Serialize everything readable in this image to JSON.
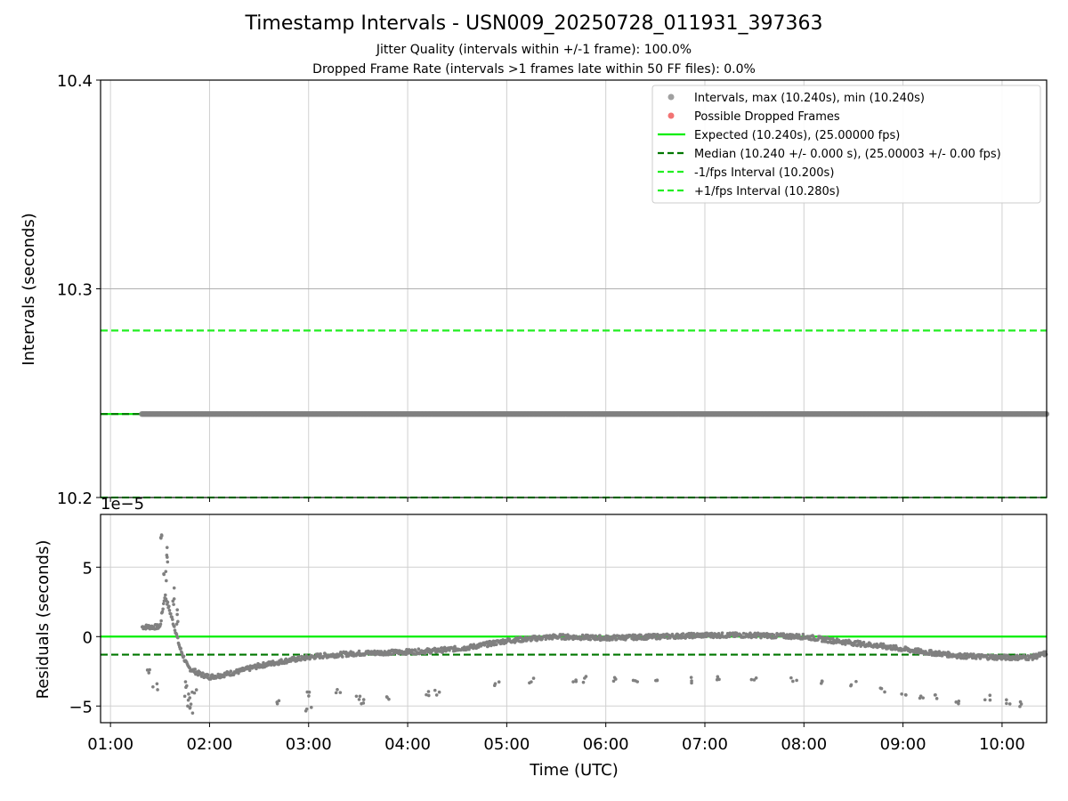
{
  "chart_data": [
    {
      "type": "scatter",
      "title": "Timestamp Intervals - USN009_20250728_011931_397363",
      "subtitle_1": "Jitter Quality (intervals within +/-1 frame): 100.0%",
      "subtitle_2": "Dropped Frame Rate (intervals >1 frames late within 50 FF files): 0.0%",
      "ylabel": "Intervals (seconds)",
      "ylim": [
        10.2,
        10.4
      ],
      "yticks": [
        "10.2",
        "10.3",
        "10.4"
      ],
      "xlim_hours": [
        0.9,
        10.45
      ],
      "grid": true,
      "legend_position": "top-right",
      "series": [
        {
          "name": "Intervals, max (10.240s), min (10.240s)",
          "kind": "scatter",
          "color": "#808080",
          "x_start": "01:19",
          "x_end": "10:27",
          "y": 10.24
        },
        {
          "name": "Possible Dropped Frames",
          "kind": "scatter",
          "color": "#ee4444",
          "points": []
        },
        {
          "name": "Expected (10.240s), (25.00000 fps)",
          "kind": "hline",
          "y": 10.24,
          "color": "#00ee00",
          "style": "solid"
        },
        {
          "name": "Median (10.240 +/- 0.000 s), (25.00003 +/- 0.00 fps)",
          "kind": "hline",
          "y": 10.24,
          "color": "#007700",
          "style": "dashed"
        },
        {
          "name": "-1/fps Interval (10.200s)",
          "kind": "hline",
          "y": 10.2,
          "color": "#22ee22",
          "style": "dashed"
        },
        {
          "name": "+1/fps Interval (10.280s)",
          "kind": "hline",
          "y": 10.28,
          "color": "#22ee22",
          "style": "dashed"
        }
      ]
    },
    {
      "type": "scatter",
      "ylabel": "Residuals (seconds)",
      "xlabel": "Time (UTC)",
      "offset_label": "1e−5",
      "ylim": [
        -6.2,
        8.8
      ],
      "yticks": [
        "−5",
        "0",
        "5"
      ],
      "xticks": [
        "01:00",
        "02:00",
        "03:00",
        "04:00",
        "05:00",
        "06:00",
        "07:00",
        "08:00",
        "09:00",
        "10:00"
      ],
      "xlim_hours": [
        0.9,
        10.45
      ],
      "grid": true,
      "hlines": [
        {
          "y": 0,
          "color": "#00ee00",
          "style": "solid"
        },
        {
          "y": -1.3,
          "color": "#007700",
          "style": "dashed"
        }
      ],
      "main_trend": [
        [
          1.32,
          0.7
        ],
        [
          1.5,
          0.7
        ],
        [
          1.55,
          3.0
        ],
        [
          1.6,
          1.8
        ],
        [
          1.65,
          0.6
        ],
        [
          1.7,
          -0.8
        ],
        [
          1.78,
          -2.2
        ],
        [
          1.9,
          -2.7
        ],
        [
          2.0,
          -2.9
        ],
        [
          2.1,
          -2.8
        ],
        [
          2.3,
          -2.5
        ],
        [
          2.5,
          -2.1
        ],
        [
          2.8,
          -1.7
        ],
        [
          3.1,
          -1.4
        ],
        [
          3.5,
          -1.2
        ],
        [
          4.0,
          -1.1
        ],
        [
          4.3,
          -1.0
        ],
        [
          4.6,
          -0.8
        ],
        [
          5.0,
          -0.3
        ],
        [
          5.5,
          0.0
        ],
        [
          6.0,
          -0.1
        ],
        [
          6.5,
          0.0
        ],
        [
          7.0,
          0.1
        ],
        [
          7.5,
          0.1
        ],
        [
          8.0,
          0.0
        ],
        [
          8.3,
          -0.3
        ],
        [
          8.8,
          -0.7
        ],
        [
          9.2,
          -1.1
        ],
        [
          9.6,
          -1.4
        ],
        [
          10.0,
          -1.5
        ],
        [
          10.3,
          -1.5
        ],
        [
          10.45,
          -1.2
        ]
      ],
      "peak": [
        [
          1.52,
          8.2
        ],
        [
          1.55,
          5.0
        ],
        [
          1.58,
          6.5
        ],
        [
          1.63,
          3.5
        ],
        [
          1.68,
          2.0
        ]
      ],
      "dip_cloud": [
        [
          1.75,
          -3.5
        ],
        [
          1.78,
          -4.2
        ],
        [
          1.8,
          -4.8
        ],
        [
          1.82,
          -5.3
        ],
        [
          1.85,
          -3.9
        ],
        [
          1.45,
          -3.6
        ],
        [
          1.38,
          -2.5
        ],
        [
          2.7,
          -4.8
        ],
        [
          2.98,
          -4.2
        ],
        [
          3.0,
          -5.2
        ],
        [
          3.3,
          -3.8
        ],
        [
          3.5,
          -4.4
        ],
        [
          3.55,
          -4.6
        ],
        [
          3.8,
          -4.3
        ],
        [
          4.2,
          -4.2
        ],
        [
          4.3,
          -4.1
        ],
        [
          4.9,
          -3.3
        ],
        [
          5.25,
          -3.1
        ],
        [
          5.7,
          -3.1
        ],
        [
          5.8,
          -3.1
        ],
        [
          6.1,
          -3.1
        ],
        [
          6.3,
          -3.2
        ],
        [
          6.5,
          -3.3
        ],
        [
          6.85,
          -3.1
        ],
        [
          7.15,
          -3.1
        ],
        [
          7.5,
          -3.1
        ],
        [
          7.9,
          -3.1
        ],
        [
          8.2,
          -3.2
        ],
        [
          8.5,
          -3.3
        ],
        [
          8.8,
          -3.8
        ],
        [
          9.0,
          -4.1
        ],
        [
          9.2,
          -4.4
        ],
        [
          9.35,
          -4.4
        ],
        [
          9.55,
          -4.6
        ],
        [
          9.85,
          -4.4
        ],
        [
          10.05,
          -4.6
        ],
        [
          10.2,
          -4.8
        ]
      ]
    }
  ]
}
